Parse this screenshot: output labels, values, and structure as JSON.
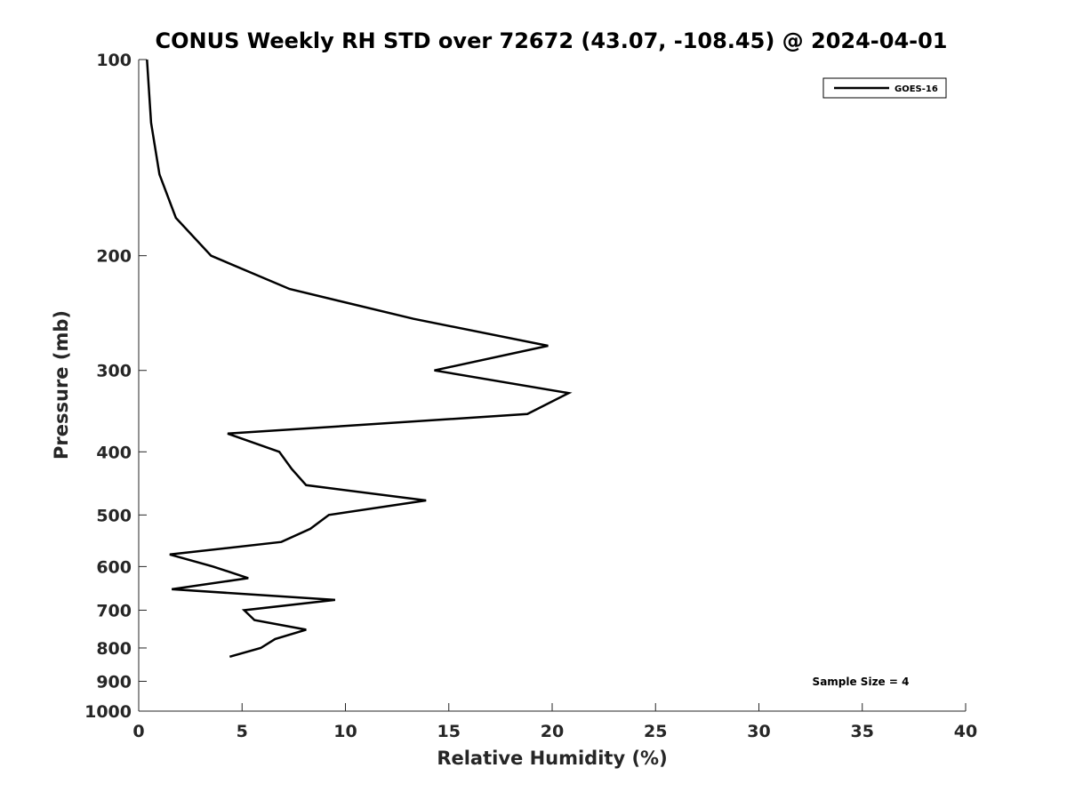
{
  "chart_data": {
    "type": "line",
    "title": "CONUS Weekly RH STD over 72672 (43.07, -108.45) @ 2024-04-01",
    "xlabel": "Relative Humidity (%)",
    "ylabel": "Pressure (mb)",
    "xlim": [
      0,
      40
    ],
    "ylim": [
      100,
      1000
    ],
    "yscale": "log",
    "xticks": [
      0,
      5,
      10,
      15,
      20,
      25,
      30,
      35,
      40
    ],
    "yticks": [
      100,
      200,
      300,
      400,
      500,
      600,
      700,
      800,
      900,
      1000
    ],
    "legend_position": "top-right",
    "annotation": "Sample Size = 4",
    "series": [
      {
        "name": "GOES-16",
        "color": "#000000",
        "pressure": [
          100,
          125,
          150,
          175,
          200,
          225,
          250,
          275,
          300,
          325,
          350,
          375,
          400,
          425,
          450,
          475,
          500,
          525,
          550,
          575,
          600,
          625,
          650,
          675,
          700,
          725,
          750,
          775,
          800,
          825
        ],
        "values": [
          0.4,
          0.6,
          1.0,
          1.8,
          3.5,
          7.3,
          13.3,
          19.8,
          14.3,
          20.8,
          18.8,
          4.3,
          6.8,
          7.4,
          8.1,
          13.9,
          9.2,
          8.3,
          6.9,
          1.5,
          3.6,
          5.3,
          1.6,
          9.5,
          5.1,
          5.6,
          8.1,
          6.6,
          5.9,
          4.4
        ]
      }
    ]
  }
}
